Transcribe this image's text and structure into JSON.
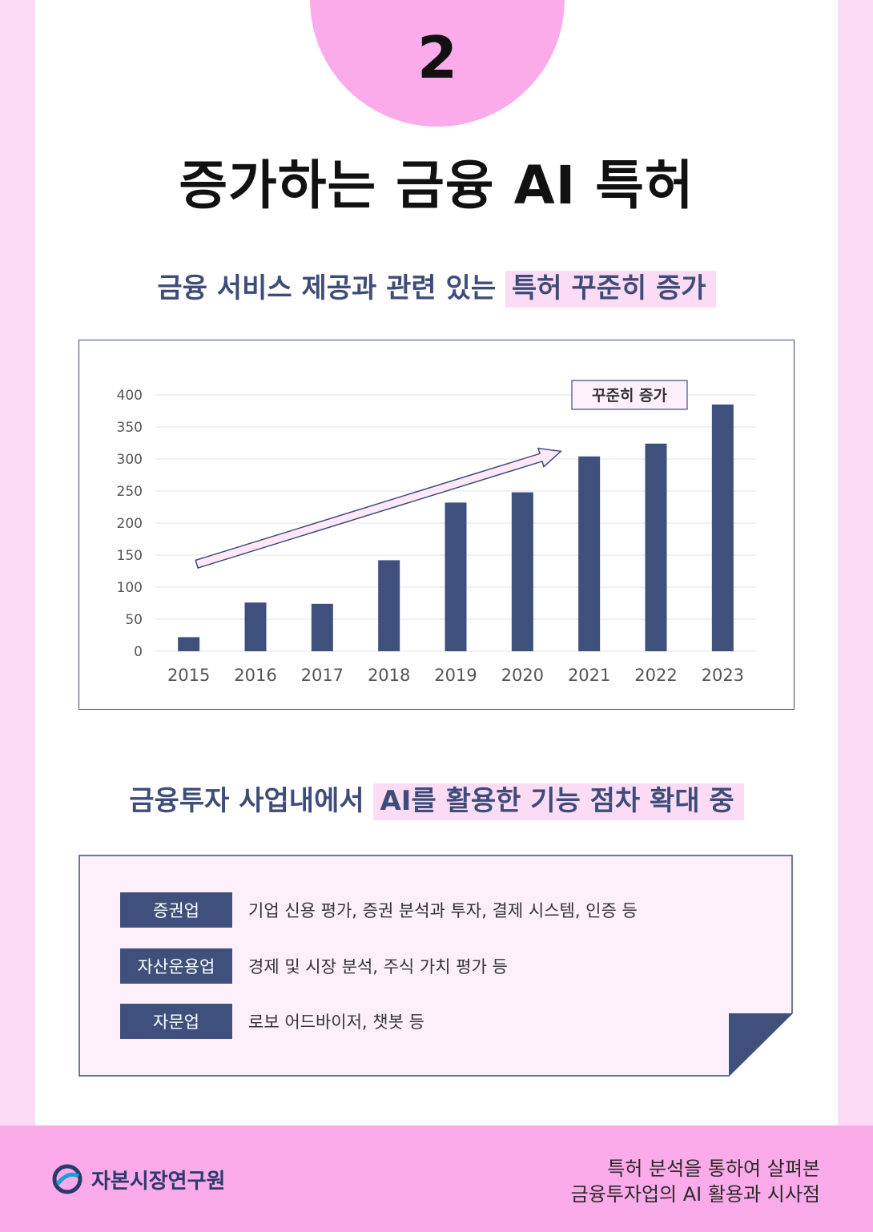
{
  "page": {
    "number": "2",
    "title": "증가하는 금융 AI 특허",
    "subtitle1": {
      "prefix": "금융 서비스 제공과 관련 있는 ",
      "highlight": "특허 꾸준히 증가"
    },
    "subtitle2": {
      "prefix": "금융투자 사업내에서 ",
      "highlight": "AI를 활용한 기능 점차 확대 중"
    }
  },
  "chart_data": {
    "type": "bar",
    "categories": [
      "2015",
      "2016",
      "2017",
      "2018",
      "2019",
      "2020",
      "2021",
      "2022",
      "2023"
    ],
    "values": [
      22,
      76,
      74,
      142,
      232,
      248,
      304,
      324,
      385
    ],
    "ylim": [
      0,
      400
    ],
    "yticks": [
      0,
      50,
      100,
      150,
      200,
      250,
      300,
      350,
      400
    ],
    "grid": true,
    "annotation": "꾸준히 증가",
    "bar_color": "#3f507c"
  },
  "list": {
    "rows": [
      {
        "tag": "증권업",
        "desc": "기업 신용 평가, 증권 분석과 투자, 결제 시스템, 인증 등"
      },
      {
        "tag": "자산운용업",
        "desc": "경제 및 시장 분석, 주식 가치 평가 등"
      },
      {
        "tag": "자문업",
        "desc": "로보 어드바이저, 챗봇 등"
      }
    ]
  },
  "footer": {
    "org": "자본시장연구원",
    "line1": "특허 분석을 통하여 살펴본",
    "line2": "금융투자업의 AI 활용과 시사점"
  },
  "colors": {
    "accent_pink": "#fbaaea",
    "light_pink": "#fcdcf4",
    "navy": "#3f507c"
  }
}
